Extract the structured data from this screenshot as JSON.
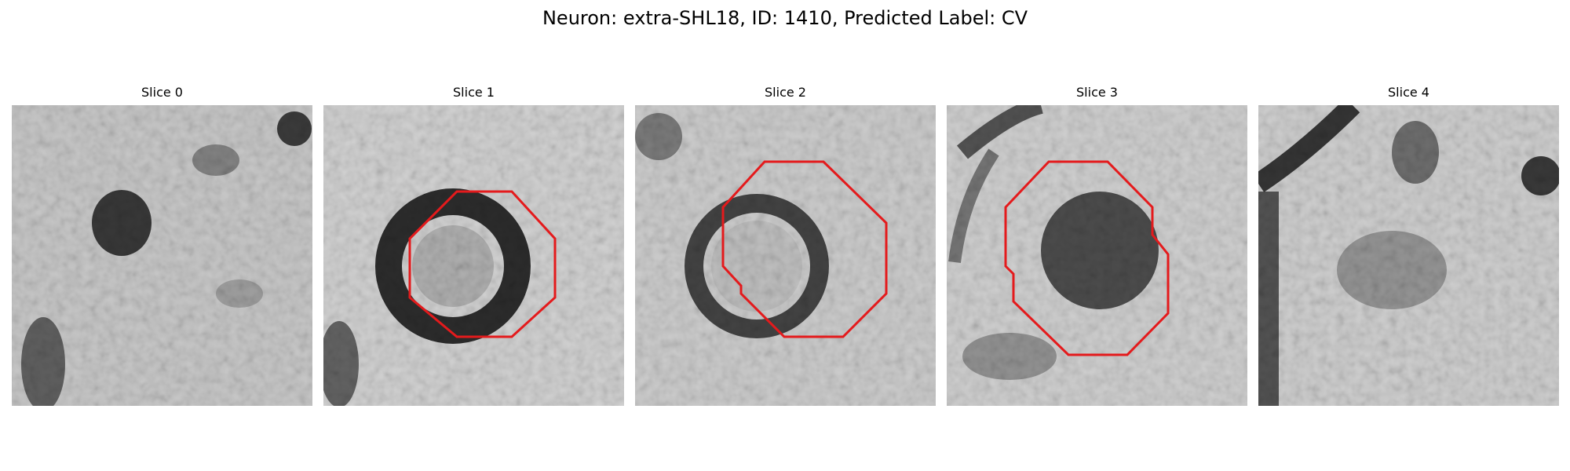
{
  "figure": {
    "title": "Neuron: extra-SHL18, ID: 1410, Predicted Label: CV"
  },
  "panels": [
    {
      "title": "Slice 0",
      "has_outline": false,
      "image_desc": "grayscale EM tile, dark blob upper-left center"
    },
    {
      "title": "Slice 1",
      "has_outline": true,
      "image_desc": "dark ring with lighter center"
    },
    {
      "title": "Slice 2",
      "has_outline": true,
      "image_desc": "dark ring, thinner"
    },
    {
      "title": "Slice 3",
      "has_outline": true,
      "image_desc": "dark filled circle"
    },
    {
      "title": "Slice 4",
      "has_outline": false,
      "image_desc": "faint gray blob center, dark diagonal band left"
    }
  ],
  "colors": {
    "outline": "#e41a1c",
    "background": "#ffffff"
  }
}
